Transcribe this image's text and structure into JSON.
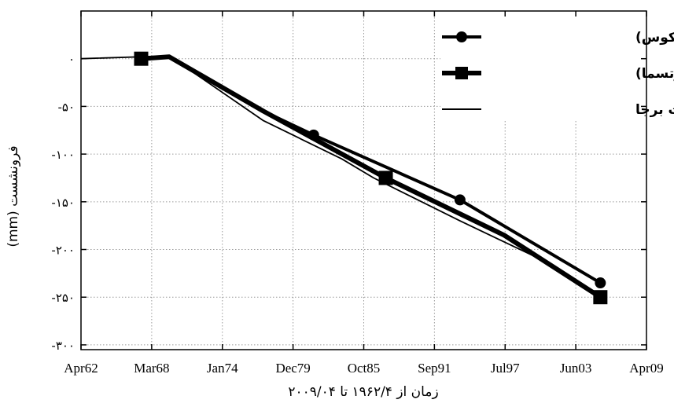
{
  "chart_data": {
    "type": "line",
    "xlabel": "زمان از ۱۹۶۲/۴ تا ۲۰۰۹/۰۴",
    "ylabel": "فرونشست (mm)",
    "x_tick_labels": [
      "Apr62",
      "Mar68",
      "Jan74",
      "Dec79",
      "Oct85",
      "Sep91",
      "Jul97",
      "Jun03",
      "Apr09"
    ],
    "y_tick_labels": [
      "۰",
      "-۵۰",
      "-۱۰۰",
      "-۱۵۰",
      "-۲۰۰",
      "-۲۵۰",
      "-۳۰۰"
    ],
    "y_ticks": [
      0,
      -50,
      -100,
      -150,
      -200,
      -250,
      -300
    ],
    "ylim": [
      -305,
      50
    ],
    "xlim": [
      "1962-04",
      "2009-04"
    ],
    "grid": true,
    "legend_position": "top-right",
    "series": [
      {
        "name": "عددی (آباکوس)",
        "style": "line-circle",
        "color": "#000000",
        "points": [
          {
            "x": "1967-04",
            "y": 0
          },
          {
            "x": "1969-08",
            "y": 2
          },
          {
            "x": "1977-06",
            "y": -55
          },
          {
            "x": "1981-08",
            "y": -80
          },
          {
            "x": "1993-10",
            "y": -148
          },
          {
            "x": "2005-06",
            "y": -235
          }
        ]
      },
      {
        "name": "تحلیلی (گیرتسما)",
        "style": "line-square",
        "color": "#000000",
        "points": [
          {
            "x": "1967-04",
            "y": 0
          },
          {
            "x": "1969-08",
            "y": 2
          },
          {
            "x": "1977-06",
            "y": -55
          },
          {
            "x": "1987-08",
            "y": -125
          },
          {
            "x": "1997-06",
            "y": -185
          },
          {
            "x": "2005-06",
            "y": -250
          }
        ]
      },
      {
        "name": "اطلاعات برجا",
        "style": "thin-line",
        "color": "#000000",
        "points": [
          {
            "x": "1962-04",
            "y": 0
          },
          {
            "x": "1969-08",
            "y": 3
          },
          {
            "x": "1977-06",
            "y": -65
          },
          {
            "x": "1983-12",
            "y": -105
          },
          {
            "x": "1986-08",
            "y": -125
          },
          {
            "x": "1993-10",
            "y": -170
          },
          {
            "x": "2000-06",
            "y": -210
          },
          {
            "x": "2005-06",
            "y": -248
          }
        ]
      }
    ]
  }
}
